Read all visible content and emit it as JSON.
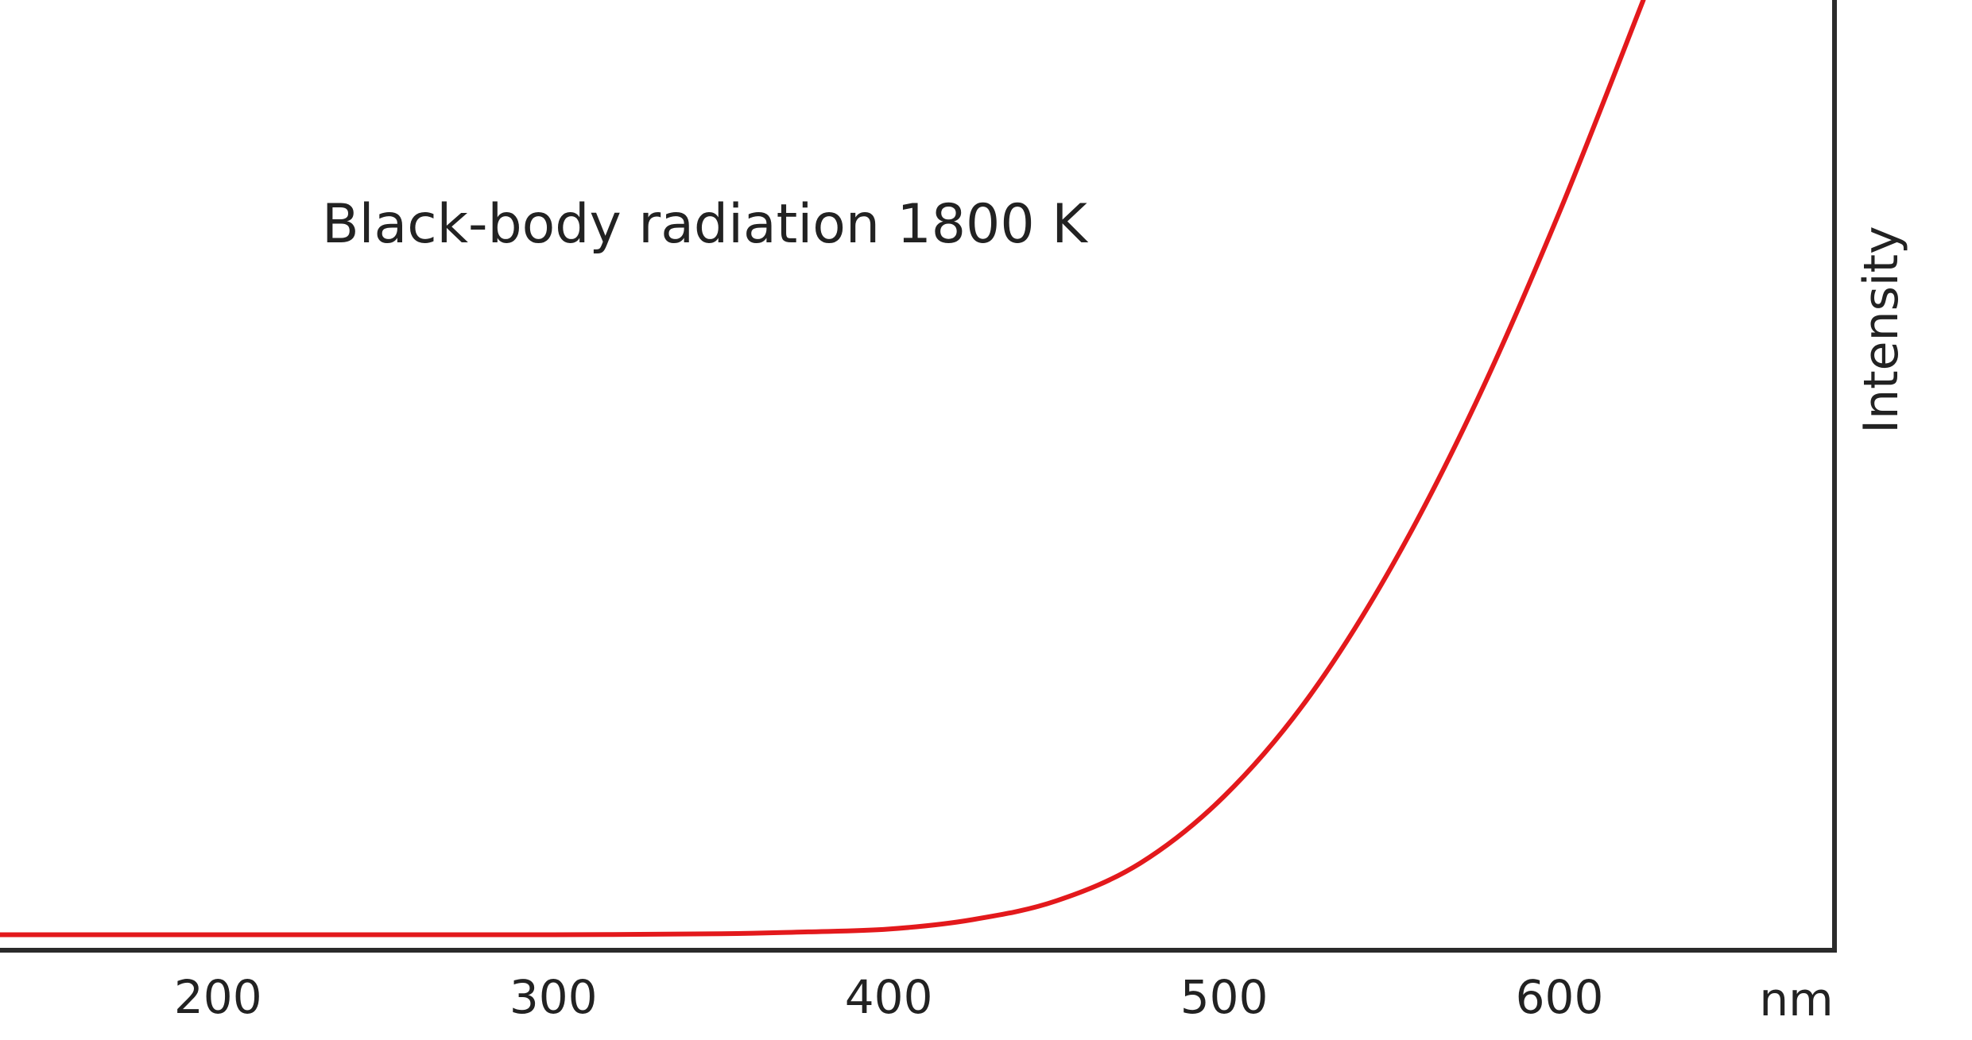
{
  "chart_data": {
    "type": "line",
    "title": "Black-body radiation 1800 K",
    "xlabel": "nm",
    "ylabel": "Intensity",
    "x_ticks": [
      200,
      300,
      400,
      500,
      600
    ],
    "xlim": [
      135,
      682
    ],
    "ylim": [
      0,
      1
    ],
    "grid": false,
    "series": [
      {
        "name": "",
        "color": "#e3191c",
        "x": [
          135,
          200,
          250,
          300,
          350,
          375,
          400,
          425,
          450,
          475,
          500,
          525,
          550,
          575,
          600,
          625
        ],
        "y": [
          0.008,
          0.008,
          0.008,
          0.008,
          0.009,
          0.011,
          0.014,
          0.024,
          0.044,
          0.084,
          0.155,
          0.259,
          0.399,
          0.572,
          0.775,
          1.0
        ]
      }
    ]
  }
}
